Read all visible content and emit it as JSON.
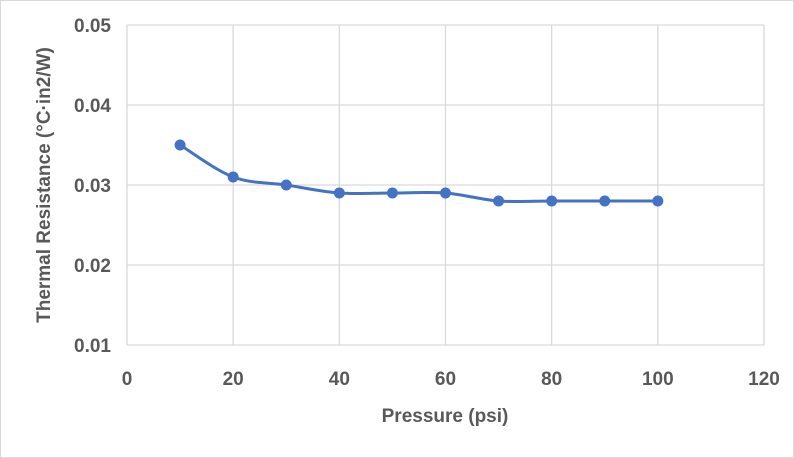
{
  "chart_data": {
    "type": "line",
    "title": "",
    "xlabel": "Pressure (psi)",
    "ylabel": "Thermal Resistance (°C·in2/W)",
    "xlim": [
      0,
      120
    ],
    "ylim": [
      0.01,
      0.05
    ],
    "xticks": [
      0,
      20,
      40,
      60,
      80,
      100,
      120
    ],
    "yticks": [
      0.01,
      0.02,
      0.03,
      0.04,
      0.05
    ],
    "ytick_labels": [
      "0.01",
      "0.02",
      "0.03",
      "0.04",
      "0.05"
    ],
    "grid": true,
    "smooth": true,
    "markers": true,
    "series": [
      {
        "x": [
          10,
          20,
          30,
          40,
          50,
          60,
          70,
          80,
          90,
          100
        ],
        "y": [
          0.035,
          0.031,
          0.03,
          0.029,
          0.029,
          0.029,
          0.028,
          0.028,
          0.028,
          0.028
        ],
        "color": "#4472c4"
      }
    ],
    "colors": {
      "grid": "#d9d9d9",
      "text": "#595959"
    }
  }
}
